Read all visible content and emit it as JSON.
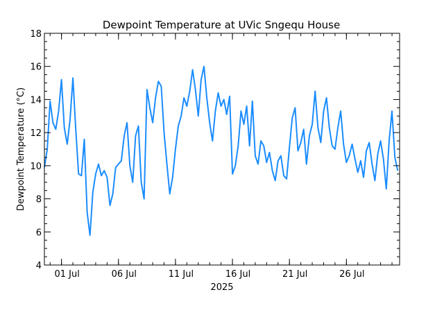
{
  "chart_data": {
    "type": "line",
    "title": "Dewpoint Temperature at UVic Sngequ House",
    "ylabel": "Dewpoint Temperature (°C)",
    "xlabel": "2025",
    "ylim": [
      4,
      18
    ],
    "xlim": [
      "2025-06-29T12:00",
      "2025-07-30T16:00"
    ],
    "y_major_ticks": [
      4,
      6,
      8,
      10,
      12,
      14,
      16,
      18
    ],
    "y_minor_step": 0.5,
    "x_tick_labels": [
      {
        "date": "2025-07-01",
        "label": "01 Jul"
      },
      {
        "date": "2025-07-06",
        "label": "06 Jul"
      },
      {
        "date": "2025-07-11",
        "label": "11 Jul"
      },
      {
        "date": "2025-07-16",
        "label": "16 Jul"
      },
      {
        "date": "2025-07-21",
        "label": "21 Jul"
      },
      {
        "date": "2025-07-26",
        "label": "26 Jul"
      }
    ],
    "grid": false,
    "series": [
      {
        "color": "#1a8cff",
        "x": [
          "2025-06-29T12:00",
          "2025-06-29T18:00",
          "2025-06-30T00:00",
          "2025-06-30T06:00",
          "2025-06-30T12:00",
          "2025-06-30T18:00",
          "2025-07-01T00:00",
          "2025-07-01T06:00",
          "2025-07-01T12:00",
          "2025-07-01T18:00",
          "2025-07-02T00:00",
          "2025-07-02T06:00",
          "2025-07-02T12:00",
          "2025-07-02T18:00",
          "2025-07-03T00:00",
          "2025-07-03T06:00",
          "2025-07-03T12:00",
          "2025-07-03T18:00",
          "2025-07-04T00:00",
          "2025-07-04T06:00",
          "2025-07-04T12:00",
          "2025-07-04T18:00",
          "2025-07-05T00:00",
          "2025-07-05T06:00",
          "2025-07-05T12:00",
          "2025-07-05T18:00",
          "2025-07-06T00:00",
          "2025-07-06T06:00",
          "2025-07-06T12:00",
          "2025-07-06T18:00",
          "2025-07-07T00:00",
          "2025-07-07T06:00",
          "2025-07-07T12:00",
          "2025-07-07T18:00",
          "2025-07-08T00:00",
          "2025-07-08T06:00",
          "2025-07-08T12:00",
          "2025-07-08T18:00",
          "2025-07-09T00:00",
          "2025-07-09T06:00",
          "2025-07-09T12:00",
          "2025-07-09T18:00",
          "2025-07-10T00:00",
          "2025-07-10T06:00",
          "2025-07-10T12:00",
          "2025-07-10T18:00",
          "2025-07-11T00:00",
          "2025-07-11T06:00",
          "2025-07-11T12:00",
          "2025-07-11T18:00",
          "2025-07-12T00:00",
          "2025-07-12T06:00",
          "2025-07-12T12:00",
          "2025-07-12T18:00",
          "2025-07-13T00:00",
          "2025-07-13T06:00",
          "2025-07-13T12:00",
          "2025-07-13T18:00",
          "2025-07-14T00:00",
          "2025-07-14T06:00",
          "2025-07-14T12:00",
          "2025-07-14T18:00",
          "2025-07-15T00:00",
          "2025-07-15T06:00",
          "2025-07-15T12:00",
          "2025-07-15T18:00",
          "2025-07-16T00:00",
          "2025-07-16T06:00",
          "2025-07-16T12:00",
          "2025-07-16T18:00",
          "2025-07-17T00:00",
          "2025-07-17T06:00",
          "2025-07-17T12:00",
          "2025-07-17T18:00",
          "2025-07-18T00:00",
          "2025-07-18T06:00",
          "2025-07-18T12:00",
          "2025-07-18T18:00",
          "2025-07-19T00:00",
          "2025-07-19T06:00",
          "2025-07-19T12:00",
          "2025-07-19T18:00",
          "2025-07-20T00:00",
          "2025-07-20T06:00",
          "2025-07-20T12:00",
          "2025-07-20T18:00",
          "2025-07-21T00:00",
          "2025-07-21T06:00",
          "2025-07-21T12:00",
          "2025-07-21T18:00",
          "2025-07-22T00:00",
          "2025-07-22T06:00",
          "2025-07-22T12:00",
          "2025-07-22T18:00",
          "2025-07-23T00:00",
          "2025-07-23T06:00",
          "2025-07-23T12:00",
          "2025-07-23T18:00",
          "2025-07-24T00:00",
          "2025-07-24T06:00",
          "2025-07-24T12:00",
          "2025-07-24T18:00",
          "2025-07-25T00:00",
          "2025-07-25T06:00",
          "2025-07-25T12:00",
          "2025-07-25T18:00",
          "2025-07-26T00:00",
          "2025-07-26T06:00",
          "2025-07-26T12:00",
          "2025-07-26T18:00",
          "2025-07-27T00:00",
          "2025-07-27T06:00",
          "2025-07-27T12:00",
          "2025-07-27T18:00",
          "2025-07-28T00:00",
          "2025-07-28T06:00",
          "2025-07-28T12:00",
          "2025-07-28T18:00",
          "2025-07-29T00:00",
          "2025-07-29T06:00",
          "2025-07-29T12:00",
          "2025-07-29T18:00",
          "2025-07-30T00:00",
          "2025-07-30T06:00",
          "2025-07-30T12:00"
        ],
        "y": [
          9.9,
          11.0,
          13.9,
          12.6,
          12.2,
          13.3,
          15.2,
          12.3,
          11.3,
          12.8,
          15.3,
          12.2,
          9.5,
          9.4,
          11.6,
          7.2,
          5.8,
          8.4,
          9.5,
          10.1,
          9.4,
          9.7,
          9.3,
          7.6,
          8.3,
          9.9,
          10.1,
          10.3,
          11.8,
          12.6,
          10.0,
          9.0,
          11.8,
          12.4,
          9.0,
          8.0,
          14.6,
          13.5,
          12.6,
          14.1,
          15.1,
          14.8,
          12.0,
          10.1,
          8.3,
          9.3,
          11.0,
          12.4,
          13.0,
          14.1,
          13.6,
          14.5,
          15.8,
          14.6,
          13.0,
          15.2,
          16.0,
          14.1,
          12.6,
          11.5,
          13.3,
          14.4,
          13.6,
          14.0,
          13.1,
          14.2,
          9.5,
          10.0,
          11.2,
          13.3,
          12.5,
          13.6,
          11.2,
          13.9,
          10.6,
          10.1,
          11.5,
          11.2,
          10.2,
          10.8,
          9.7,
          9.1,
          10.3,
          10.6,
          9.4,
          9.2,
          11.1,
          12.9,
          13.5,
          10.9,
          11.4,
          12.2,
          10.1,
          11.8,
          12.5,
          14.5,
          12.3,
          11.4,
          13.3,
          14.1,
          12.3,
          11.2,
          11.0,
          12.3,
          13.3,
          11.3,
          10.2,
          10.6,
          11.3,
          10.4,
          9.6,
          10.3,
          9.3,
          10.9,
          11.4,
          10.1,
          9.1,
          10.7,
          11.5,
          10.4,
          8.6,
          11.5,
          13.3,
          10.5,
          9.7
        ]
      }
    ]
  }
}
